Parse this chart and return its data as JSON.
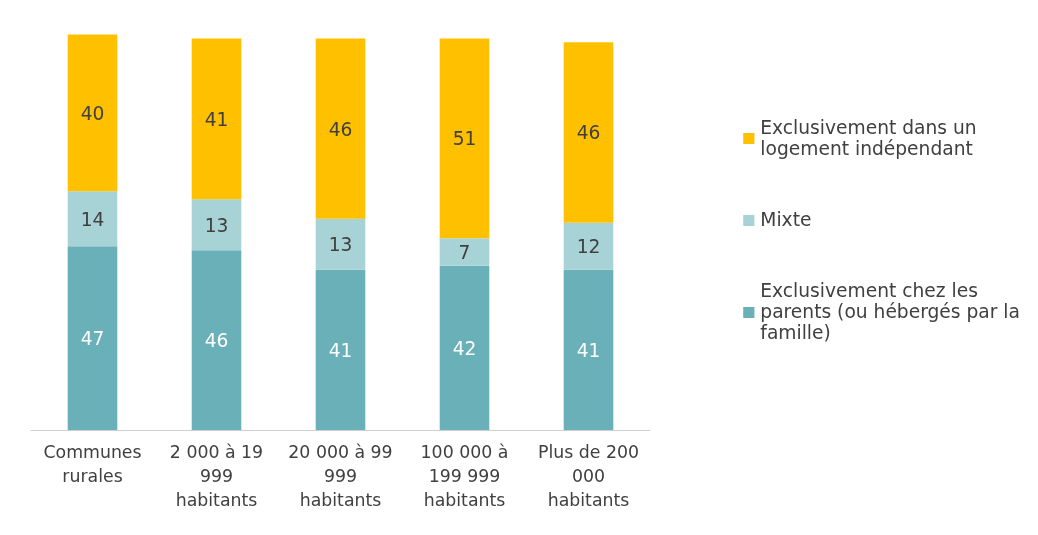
{
  "chart_data": {
    "type": "bar",
    "stacked": true,
    "data_labels": true,
    "legend": "right",
    "grid": false,
    "tick_labels": "x",
    "categories": [
      "Communes rurales",
      "2 000 à 19 999 habitants",
      "20 000 à 99 999 habitants",
      "100 000 à 199 999 habitants",
      "Plus de 200 000 habitants"
    ],
    "series": [
      {
        "name": "Exclusivement chez les parents (ou hébergés par la famille)",
        "color": "#69b0b8",
        "values": [
          47,
          46,
          41,
          42,
          41
        ]
      },
      {
        "name": "Mixte",
        "color": "#a8d3d6",
        "values": [
          14,
          13,
          13,
          7,
          12
        ]
      },
      {
        "name": "Exclusivement dans un logement indépendant",
        "color": "#ffc000",
        "values": [
          40,
          41,
          46,
          51,
          46
        ]
      }
    ]
  }
}
